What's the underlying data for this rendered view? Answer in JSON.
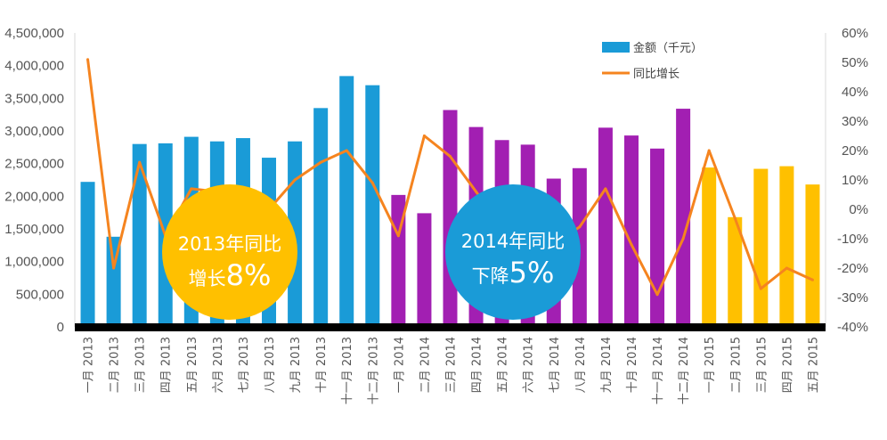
{
  "chart_data": {
    "type": "bar+line",
    "categories": [
      "一月 2013",
      "二月 2013",
      "三月 2013",
      "四月 2013",
      "五月 2013",
      "六月 2013",
      "七月 2013",
      "八月 2013",
      "九月 2013",
      "十月 2013",
      "十一月 2013",
      "十二月 2013",
      "一月 2014",
      "二月 2014",
      "三月 2014",
      "四月 2014",
      "五月 2014",
      "六月 2014",
      "七月 2014",
      "八月 2014",
      "九月 2014",
      "十月 2014",
      "十一月 2014",
      "十二月 2014",
      "一月 2015",
      "二月 2015",
      "三月 2015",
      "四月 2015",
      "五月 2015"
    ],
    "series": [
      {
        "name": "金额（千元）",
        "type": "bar",
        "axis": "left",
        "values": [
          2220000,
          1380000,
          2800000,
          2810000,
          2910000,
          2840000,
          2890000,
          2590000,
          2840000,
          3350000,
          3840000,
          3700000,
          2020000,
          1740000,
          3320000,
          3060000,
          2860000,
          2790000,
          2270000,
          2430000,
          3050000,
          2930000,
          2730000,
          3340000,
          2440000,
          1680000,
          2420000,
          2460000,
          2180000
        ],
        "colors_by_year": {
          "2013": "#1a9bd7",
          "2014": "#a21fb2",
          "2015": "#ffc000"
        }
      },
      {
        "name": "同比增长",
        "type": "line",
        "axis": "right",
        "color": "#f5841f",
        "values": [
          51,
          -20,
          16,
          -9,
          7,
          6,
          -6,
          0,
          10,
          16,
          20,
          9,
          -9,
          25,
          18,
          6,
          -6,
          -4,
          -12,
          -6,
          7,
          -12,
          -29,
          -10,
          20,
          -3,
          -27,
          -20,
          -24
        ]
      }
    ],
    "y_left": {
      "ylim": [
        0,
        4500000
      ],
      "ticks": [
        "0",
        "500,000",
        "1,000,000",
        "1,500,000",
        "2,000,000",
        "2,500,000",
        "3,000,000",
        "3,500,000",
        "4,000,000",
        "4,500,000"
      ]
    },
    "y_right": {
      "ylim": [
        -40,
        60
      ],
      "ticks": [
        "-40%",
        "-30%",
        "-20%",
        "-10%",
        "0%",
        "10%",
        "20%",
        "30%",
        "40%",
        "50%",
        "60%"
      ]
    },
    "legend": {
      "position": "top-right",
      "bar_label": "金额（千元）",
      "line_label": "同比增长"
    },
    "annotations": [
      {
        "year": "2013",
        "line1": "2013年同比",
        "line2_prefix": "增长",
        "line2_value": "8%",
        "color": "#ffc000"
      },
      {
        "year": "2014",
        "line1": "2014年同比",
        "line2_prefix": "下降",
        "line2_value": "5%",
        "color": "#1a9bd7"
      }
    ],
    "grid": false
  }
}
